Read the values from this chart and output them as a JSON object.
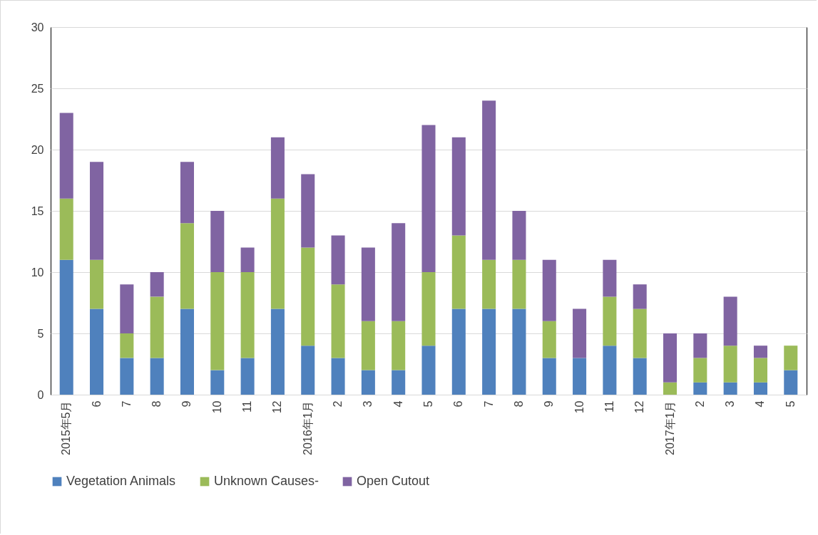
{
  "chart_data": {
    "type": "bar",
    "stacked": true,
    "categories": [
      "2015年5月",
      "6",
      "7",
      "8",
      "9",
      "10",
      "11",
      "12",
      "2016年1月",
      "2",
      "3",
      "4",
      "5",
      "6",
      "7",
      "8",
      "9",
      "10",
      "11",
      "12",
      "2017年1月",
      "2",
      "3",
      "4",
      "5"
    ],
    "series": [
      {
        "name": "Vegetation Animals",
        "color": "#4f81bd",
        "values": [
          11,
          7,
          3,
          3,
          7,
          2,
          3,
          7,
          4,
          3,
          2,
          2,
          4,
          7,
          7,
          7,
          3,
          3,
          4,
          3,
          0,
          1,
          1,
          1,
          2
        ]
      },
      {
        "name": "Unknown Causes-",
        "color": "#9bbb59",
        "values": [
          5,
          4,
          2,
          5,
          7,
          8,
          7,
          9,
          8,
          6,
          4,
          4,
          6,
          6,
          4,
          4,
          3,
          0,
          4,
          4,
          1,
          2,
          3,
          2,
          2
        ]
      },
      {
        "name": "Open Cutout",
        "color": "#8064a2",
        "values": [
          7,
          8,
          4,
          2,
          5,
          5,
          2,
          5,
          6,
          4,
          6,
          8,
          12,
          8,
          13,
          4,
          5,
          4,
          3,
          2,
          4,
          2,
          4,
          1,
          0
        ]
      }
    ],
    "ylim": [
      0,
      30
    ],
    "yticks": [
      0,
      5,
      10,
      15,
      20,
      25,
      30
    ],
    "grid": "y",
    "legend": "bottom"
  }
}
